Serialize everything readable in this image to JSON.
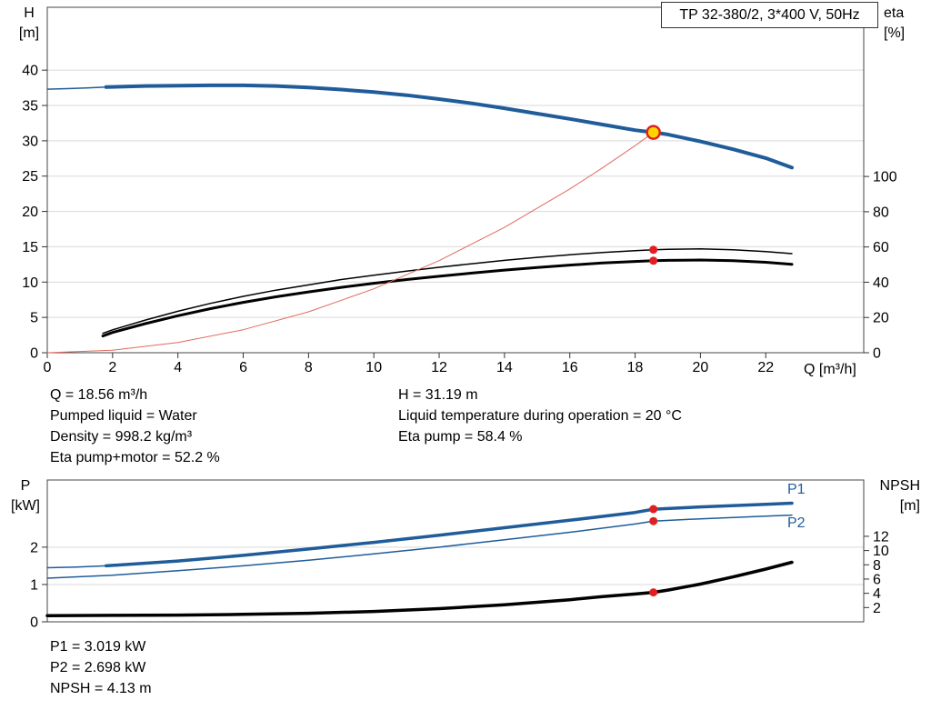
{
  "colors": {
    "curve_blue": "#1f5c99",
    "curve_black": "#000000",
    "system_red": "#e06a5f",
    "marker_red": "#e02020",
    "duty_yellow": "#ffd400",
    "grid": "#d9d9d9"
  },
  "axis_display": {
    "top_left": [
      "H",
      "[m]"
    ],
    "top_right": [
      "eta",
      "[%]"
    ],
    "x_axis": "Q [m³/h]",
    "bottom_left": [
      "P",
      "[kW]"
    ],
    "bottom_right": [
      "NPSH",
      "[m]"
    ]
  },
  "curve_labels": {
    "p1": "P1",
    "p2": "P2"
  },
  "annotations": {
    "top_left_column": [
      "Q = 18.56 m³/h",
      "Pumped liquid = Water",
      "Density = 998.2 kg/m³",
      "Eta pump+motor = 52.2 %"
    ],
    "top_right_column": [
      "H = 31.19 m",
      "Liquid temperature during operation = 20 °C",
      "Eta pump = 58.4 %"
    ],
    "bottom_column": [
      "P1 = 3.019 kW",
      "P2 = 2.698 kW",
      "NPSH = 4.13 m"
    ]
  },
  "chart_data": [
    {
      "type": "line",
      "name": "head-efficiency-chart",
      "title": "TP 32-380/2, 3*400 V, 50Hz",
      "xlabel": "Q [m³/h]",
      "ylabel_left": "H [m]",
      "ylabel_right": "eta [%]",
      "xlim": [
        0,
        25
      ],
      "ylim_left": [
        0,
        48.9
      ],
      "ylim_right": [
        0,
        196
      ],
      "xticks": [
        0,
        2,
        4,
        6,
        8,
        10,
        12,
        14,
        16,
        18,
        20,
        22
      ],
      "yticks_left": [
        0,
        5,
        10,
        15,
        20,
        25,
        30,
        35,
        40
      ],
      "yticks_right": [
        0,
        20,
        40,
        60,
        80,
        100
      ],
      "grid": "horizontal",
      "series": [
        {
          "name": "pump-curve-lead-in",
          "axis": "left",
          "color": "#1f5c99",
          "width": 1.5,
          "x": [
            0,
            0.6,
            1.2,
            1.8
          ],
          "y": [
            37.3,
            37.38,
            37.48,
            37.6
          ]
        },
        {
          "name": "pump-curve-h-q",
          "axis": "left",
          "color": "#1f5c99",
          "width": 4,
          "x": [
            1.8,
            3,
            4,
            5,
            6,
            7,
            8,
            9,
            10,
            11,
            12,
            13,
            14,
            15,
            16,
            17,
            18,
            18.56,
            19,
            20,
            21,
            22,
            22.8
          ],
          "y": [
            37.6,
            37.75,
            37.8,
            37.85,
            37.85,
            37.75,
            37.55,
            37.25,
            36.9,
            36.45,
            35.9,
            35.3,
            34.6,
            33.85,
            33.1,
            32.3,
            31.5,
            31.19,
            30.9,
            29.9,
            28.8,
            27.55,
            26.2
          ]
        },
        {
          "name": "eta-pump-curve",
          "axis": "right",
          "color": "#000000",
          "width": 1.5,
          "x": [
            1.7,
            2,
            3,
            4,
            5,
            6,
            7,
            8,
            9,
            10,
            11,
            12,
            13,
            14,
            15,
            16,
            17,
            18,
            18.56,
            19,
            20,
            21,
            22,
            22.8
          ],
          "y": [
            11,
            13,
            18.5,
            23.5,
            28,
            32,
            35.5,
            38.5,
            41.5,
            44,
            46.3,
            48.5,
            50.5,
            52.4,
            54.1,
            55.6,
            56.9,
            57.9,
            58.4,
            58.7,
            58.9,
            58.4,
            57.4,
            56.2
          ]
        },
        {
          "name": "eta-pump-motor-curve",
          "axis": "right",
          "color": "#000000",
          "width": 3,
          "x": [
            1.7,
            2,
            3,
            4,
            5,
            6,
            7,
            8,
            9,
            10,
            11,
            12,
            13,
            14,
            15,
            16,
            17,
            18,
            18.56,
            19,
            20,
            21,
            22,
            22.8
          ],
          "y": [
            9.5,
            11.5,
            16.5,
            21,
            25,
            28.6,
            31.7,
            34.5,
            37.1,
            39.4,
            41.5,
            43.4,
            45.2,
            46.9,
            48.4,
            49.7,
            50.9,
            51.8,
            52.2,
            52.4,
            52.6,
            52.2,
            51.3,
            50.2
          ]
        },
        {
          "name": "system-curve",
          "axis": "left",
          "color": "#e06a5f",
          "width": 1,
          "x": [
            0,
            2,
            4,
            6,
            8,
            10,
            12,
            14,
            16,
            17,
            18,
            18.56
          ],
          "y": [
            0,
            0.36,
            1.45,
            3.26,
            5.79,
            9.05,
            13.03,
            17.74,
            23.17,
            26.16,
            29.32,
            31.19
          ]
        }
      ],
      "markers": [
        {
          "name": "duty-point",
          "axis": "left",
          "x": 18.56,
          "y": 31.19,
          "r": 7,
          "fill": "#ffd400",
          "stroke": "#e02020",
          "stroke_width": 2.5
        },
        {
          "name": "eta-pump-dot",
          "axis": "right",
          "x": 18.56,
          "y": 58.4,
          "r": 4.5,
          "fill": "#e02020"
        },
        {
          "name": "eta-pump-motor-dot",
          "axis": "right",
          "x": 18.56,
          "y": 52.2,
          "r": 4.5,
          "fill": "#e02020"
        }
      ]
    },
    {
      "type": "line",
      "name": "power-npsh-chart",
      "title": "",
      "xlabel": "Q [m³/h]",
      "ylabel_left": "P [kW]",
      "ylabel_right": "NPSH [m]",
      "xlim": [
        0,
        25
      ],
      "ylim_left": [
        0,
        3.8
      ],
      "ylim_right": [
        0,
        19.9
      ],
      "xticks": [],
      "yticks_left": [
        0,
        1,
        2
      ],
      "yticks_right": [
        2,
        4,
        6,
        8,
        10,
        12
      ],
      "grid": "horizontal",
      "series": [
        {
          "name": "p1-curve-lead-in",
          "axis": "left",
          "color": "#1f5c99",
          "width": 1.5,
          "x": [
            0,
            0.9,
            1.8
          ],
          "y": [
            1.45,
            1.47,
            1.5
          ]
        },
        {
          "name": "p1-curve",
          "axis": "left",
          "color": "#1f5c99",
          "width": 3.5,
          "x": [
            1.8,
            4,
            6,
            8,
            10,
            12,
            14,
            16,
            18,
            18.56,
            20,
            22,
            22.8
          ],
          "y": [
            1.5,
            1.63,
            1.78,
            1.95,
            2.13,
            2.32,
            2.52,
            2.72,
            2.93,
            3.019,
            3.08,
            3.15,
            3.18
          ]
        },
        {
          "name": "p2-curve",
          "axis": "left",
          "color": "#1f5c99",
          "width": 1.5,
          "x": [
            0,
            2,
            4,
            6,
            8,
            10,
            12,
            14,
            16,
            18,
            18.56,
            20,
            22,
            22.8
          ],
          "y": [
            1.17,
            1.25,
            1.37,
            1.5,
            1.65,
            1.82,
            2.0,
            2.2,
            2.4,
            2.62,
            2.698,
            2.76,
            2.83,
            2.86
          ]
        },
        {
          "name": "npsh-curve",
          "axis": "right",
          "color": "#000000",
          "width": 3.5,
          "x": [
            0,
            2,
            4,
            6,
            8,
            10,
            12,
            14,
            16,
            17,
            18,
            18.56,
            19,
            20,
            21,
            22,
            22.8
          ],
          "y": [
            0.85,
            0.9,
            0.95,
            1.05,
            1.2,
            1.45,
            1.85,
            2.4,
            3.1,
            3.55,
            3.9,
            4.13,
            4.45,
            5.3,
            6.3,
            7.4,
            8.35
          ]
        }
      ],
      "markers": [
        {
          "name": "p1-dot",
          "axis": "left",
          "x": 18.56,
          "y": 3.019,
          "r": 4.5,
          "fill": "#e02020"
        },
        {
          "name": "p2-dot",
          "axis": "left",
          "x": 18.56,
          "y": 2.698,
          "r": 4.5,
          "fill": "#e02020"
        },
        {
          "name": "npsh-dot",
          "axis": "right",
          "x": 18.56,
          "y": 4.13,
          "r": 4.5,
          "fill": "#e02020"
        }
      ]
    }
  ]
}
